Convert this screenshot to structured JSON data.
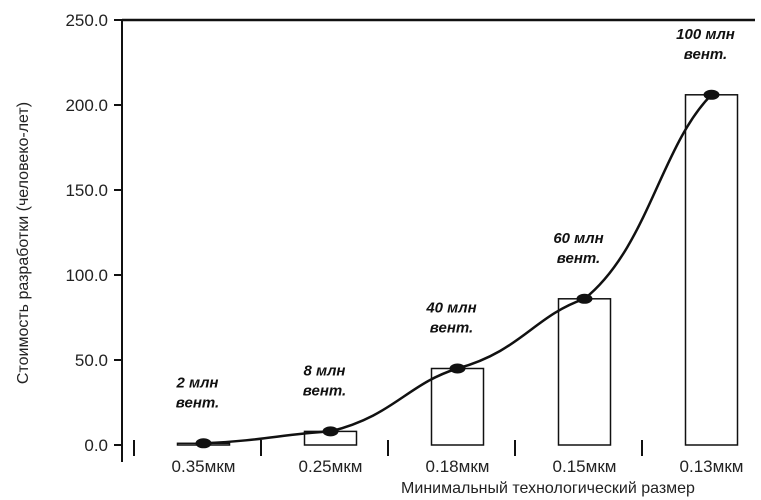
{
  "chart_data": {
    "type": "bar",
    "title": "",
    "xlabel": "Минимальный технологический размер",
    "ylabel": "Стоимость разработки (человеко-лет)",
    "ylim": [
      0,
      250
    ],
    "yticks": [
      "0.0",
      "50.0",
      "100.0",
      "150.0",
      "200.0",
      "250.0"
    ],
    "categories": [
      "0.35мкм",
      "0.25мкм",
      "0.18мкм",
      "0.15мкм",
      "0.13мкм"
    ],
    "values": [
      1,
      8,
      45,
      86,
      206
    ],
    "annotations": [
      [
        "2 млн",
        "вент."
      ],
      [
        "8 млн",
        "вент."
      ],
      [
        "40 млн",
        "вент."
      ],
      [
        "60 млн",
        "вент."
      ],
      [
        "100 млн",
        "вент."
      ]
    ],
    "overlay": "line",
    "grid": false
  }
}
